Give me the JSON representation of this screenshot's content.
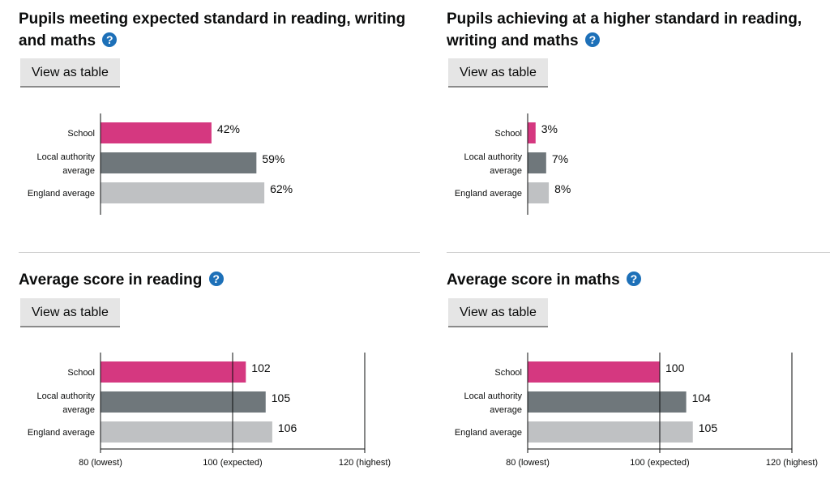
{
  "panels": [
    {
      "title_lines": [
        "Pupils meeting expected standard in reading, writing",
        "and maths"
      ],
      "button": "View as table"
    },
    {
      "title_lines": [
        "Pupils achieving at a higher standard in reading,",
        "writing and maths"
      ],
      "button": "View as table"
    },
    {
      "title_lines": [
        "Average score in reading"
      ],
      "button": "View as table"
    },
    {
      "title_lines": [
        "Average score in maths"
      ],
      "button": "View as table"
    }
  ],
  "help_glyph": "?",
  "colors": {
    "school": "#d53880",
    "local": "#6f777b",
    "england": "#bfc1c3",
    "help": "#1d70b8"
  },
  "chart_data": [
    {
      "type": "bar",
      "orientation": "horizontal",
      "categories": [
        [
          "School"
        ],
        [
          "Local authority",
          "average"
        ],
        [
          "England average"
        ]
      ],
      "values": [
        42,
        59,
        62
      ],
      "value_suffix": "%",
      "xlim": [
        0,
        100
      ],
      "show_ticks": false
    },
    {
      "type": "bar",
      "orientation": "horizontal",
      "categories": [
        [
          "School"
        ],
        [
          "Local authority",
          "average"
        ],
        [
          "England average"
        ]
      ],
      "values": [
        3,
        7,
        8
      ],
      "value_suffix": "%",
      "xlim": [
        0,
        100
      ],
      "show_ticks": false
    },
    {
      "type": "bar",
      "orientation": "horizontal",
      "categories": [
        [
          "School"
        ],
        [
          "Local authority",
          "average"
        ],
        [
          "England average"
        ]
      ],
      "values": [
        102,
        105,
        106
      ],
      "value_suffix": "",
      "xlim": [
        80,
        120
      ],
      "show_ticks": true,
      "ticks": [
        {
          "value": 80,
          "label": "80 (lowest)"
        },
        {
          "value": 100,
          "label": "100 (expected)"
        },
        {
          "value": 120,
          "label": "120 (highest)"
        }
      ]
    },
    {
      "type": "bar",
      "orientation": "horizontal",
      "categories": [
        [
          "School"
        ],
        [
          "Local authority",
          "average"
        ],
        [
          "England average"
        ]
      ],
      "values": [
        100,
        104,
        105
      ],
      "value_suffix": "",
      "xlim": [
        80,
        120
      ],
      "show_ticks": true,
      "ticks": [
        {
          "value": 80,
          "label": "80 (lowest)"
        },
        {
          "value": 100,
          "label": "100 (expected)"
        },
        {
          "value": 120,
          "label": "120 (highest)"
        }
      ]
    }
  ]
}
